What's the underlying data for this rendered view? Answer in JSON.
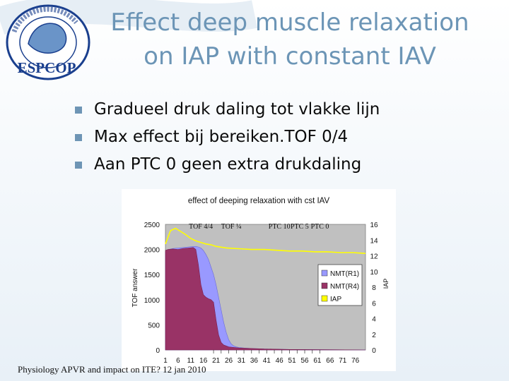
{
  "slide": {
    "title_line1": "Effect deep muscle relaxation",
    "title_line2": "on  IAP with constant IAV",
    "bullets": [
      {
        "icon": "square-bullet-icon",
        "text": "Gradueel druk daling tot vlakke lijn"
      },
      {
        "icon": "square-bullet-icon",
        "text": "Max effect bij bereiken.TOF 0/4"
      },
      {
        "icon": "square-bullet-icon",
        "text": "Aan PTC 0 geen extra drukdaling"
      }
    ],
    "footer": "Physiology APVR and impact on ITE? 12 jan 2010"
  },
  "logo": {
    "text": "ESPCOP",
    "ring_text": "European Society of Peri Operative Care of the Obese Patient",
    "colors": {
      "ring": "#1a3f8e",
      "text": "#1a3f8e"
    }
  },
  "theme": {
    "title_color": "#6c95b6",
    "bullet_color": "#6e95b5",
    "background": "#f3f8fc"
  },
  "chart_data": {
    "type": "area",
    "title": "effect of deeping relaxation with cst IAV",
    "ylabel": "TOF answer",
    "y2label": "IAP",
    "ylim": [
      0,
      2500
    ],
    "y2lim": [
      0,
      16
    ],
    "yticks": [
      0,
      500,
      1000,
      1500,
      2000,
      2500
    ],
    "y2ticks": [
      0,
      2,
      4,
      6,
      8,
      10,
      12,
      14,
      16
    ],
    "x_ticks": [
      1,
      6,
      11,
      16,
      21,
      26,
      31,
      36,
      41,
      46,
      51,
      56,
      61,
      66,
      71,
      76
    ],
    "xlim": [
      1,
      80
    ],
    "annotations": [
      {
        "label": "TOF 4/4",
        "x": 15
      },
      {
        "label": "TOF ¼",
        "x": 27
      },
      {
        "label": "PTC 10",
        "x": 46
      },
      {
        "label": "PTC 5",
        "x": 54
      },
      {
        "label": "PTC 0",
        "x": 62
      }
    ],
    "legend_position": "right",
    "series": [
      {
        "name": "NMT(R1)",
        "axis": "left",
        "color": "#9999ff",
        "x": [
          1,
          2,
          4,
          6,
          8,
          10,
          12,
          13,
          14,
          15,
          16,
          17,
          18,
          19,
          20,
          21,
          22,
          23,
          24,
          25,
          26,
          27,
          28,
          29,
          30,
          32,
          35,
          40,
          45,
          50,
          80
        ],
        "values": [
          1950,
          2000,
          2020,
          2030,
          2040,
          2050,
          2060,
          2060,
          2050,
          2030,
          1980,
          1900,
          1800,
          1650,
          1500,
          1300,
          1050,
          800,
          550,
          350,
          200,
          120,
          80,
          60,
          50,
          40,
          30,
          20,
          15,
          10,
          0
        ]
      },
      {
        "name": "NMT(R4)",
        "axis": "left",
        "color": "#993366",
        "x": [
          1,
          2,
          4,
          6,
          8,
          10,
          12,
          13,
          14,
          15,
          16,
          17,
          18,
          19,
          20,
          21,
          22,
          23,
          24,
          25,
          26,
          28,
          30,
          35,
          40,
          45,
          50,
          80
        ],
        "values": [
          1980,
          2000,
          2010,
          2000,
          2020,
          2030,
          2040,
          2000,
          1700,
          1300,
          1100,
          1050,
          1020,
          1000,
          950,
          600,
          300,
          150,
          100,
          80,
          60,
          50,
          40,
          30,
          20,
          15,
          10,
          0
        ]
      },
      {
        "name": "IAP",
        "axis": "right",
        "color": "#ffff00",
        "x": [
          1,
          3,
          5,
          7,
          9,
          11,
          13,
          15,
          17,
          19,
          21,
          25,
          30,
          35,
          40,
          45,
          50,
          55,
          60,
          65,
          70,
          75,
          80
        ],
        "values": [
          13.5,
          15.2,
          15.5,
          15.1,
          14.7,
          14.2,
          13.9,
          13.7,
          13.5,
          13.4,
          13.2,
          13.0,
          12.9,
          12.8,
          12.8,
          12.7,
          12.6,
          12.6,
          12.5,
          12.5,
          12.4,
          12.4,
          12.3
        ]
      }
    ]
  }
}
